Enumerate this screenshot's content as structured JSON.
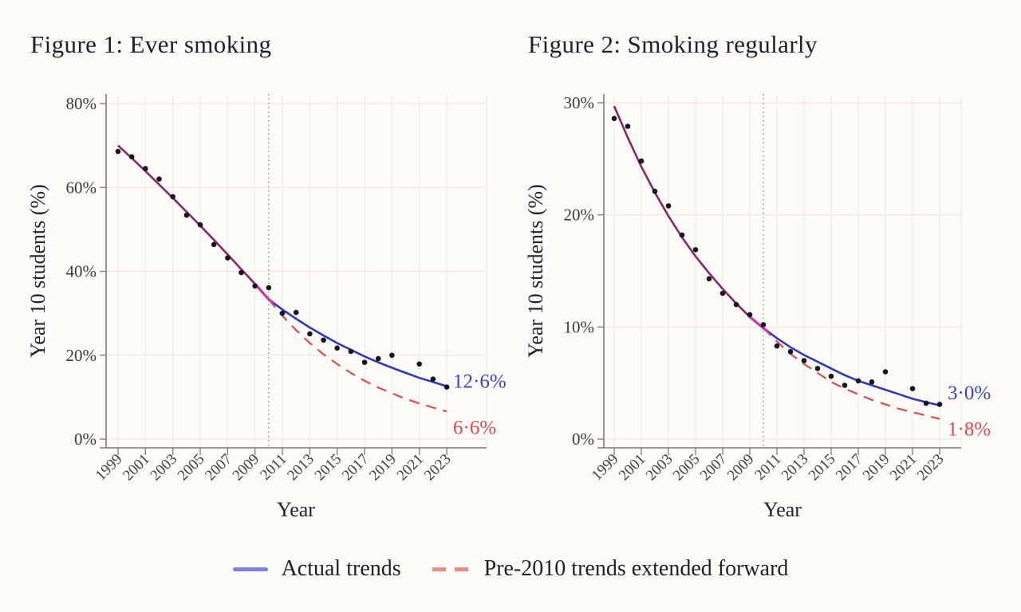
{
  "page": {
    "background_color": "#fcfbf8"
  },
  "legend": {
    "items": [
      {
        "label": "Actual trends",
        "style": "solid",
        "color": "#7d82d8"
      },
      {
        "label": "Pre-2010 trends extended forward",
        "style": "dashed",
        "color": "#ea8b8b"
      }
    ]
  },
  "colors": {
    "actual_line": "#3138c0",
    "extended_line": "#e24a4a",
    "pre2010_overlap_line": "#a22449",
    "junction_highlight": "#d835b5",
    "data_point": "#16161c"
  },
  "chart_data": [
    {
      "type": "scatter",
      "title": "Figure 1: Ever smoking",
      "xlabel": "Year",
      "ylabel": "Year 10 students (%)",
      "ylim": [
        0,
        80
      ],
      "yticks": [
        0,
        20,
        40,
        60,
        80
      ],
      "ytick_labels": [
        "0%",
        "20%",
        "40%",
        "60%",
        "80%"
      ],
      "xticks": [
        1999,
        2001,
        2003,
        2005,
        2007,
        2009,
        2011,
        2013,
        2015,
        2017,
        2019,
        2021,
        2023
      ],
      "reference_line_x": 2010,
      "grid": true,
      "legend_position": "bottom-shared",
      "points": [
        [
          1999,
          68.6
        ],
        [
          2000,
          67.3
        ],
        [
          2001,
          64.5
        ],
        [
          2002,
          62.0
        ],
        [
          2003,
          57.8
        ],
        [
          2004,
          53.4
        ],
        [
          2005,
          51.1
        ],
        [
          2006,
          46.4
        ],
        [
          2007,
          43.2
        ],
        [
          2008,
          39.7
        ],
        [
          2009,
          36.5
        ],
        [
          2010,
          36.1
        ],
        [
          2011,
          30.0
        ],
        [
          2012,
          30.2
        ],
        [
          2013,
          25.1
        ],
        [
          2014,
          23.6
        ],
        [
          2015,
          21.7
        ],
        [
          2016,
          20.9
        ],
        [
          2017,
          18.3
        ],
        [
          2018,
          19.2
        ],
        [
          2019,
          20.0
        ],
        [
          2021,
          17.9
        ],
        [
          2022,
          14.3
        ],
        [
          2023,
          12.4
        ]
      ],
      "fit_pre2010": [
        [
          1999,
          70.0
        ],
        [
          2000,
          67.0
        ],
        [
          2001,
          63.9
        ],
        [
          2002,
          60.7
        ],
        [
          2003,
          57.5
        ],
        [
          2004,
          54.2
        ],
        [
          2005,
          50.9
        ],
        [
          2006,
          47.5
        ],
        [
          2007,
          44.0
        ],
        [
          2008,
          40.5
        ],
        [
          2009,
          37.0
        ],
        [
          2010,
          33.3
        ]
      ],
      "fit_actual_post2010": [
        [
          2010,
          33.3
        ],
        [
          2011,
          30.9
        ],
        [
          2012,
          28.7
        ],
        [
          2013,
          26.6
        ],
        [
          2014,
          24.7
        ],
        [
          2015,
          22.9
        ],
        [
          2016,
          21.3
        ],
        [
          2017,
          19.7
        ],
        [
          2018,
          18.3
        ],
        [
          2019,
          17.0
        ],
        [
          2020,
          15.8
        ],
        [
          2021,
          14.6
        ],
        [
          2022,
          13.6
        ],
        [
          2023,
          12.6
        ]
      ],
      "fit_extended_post2010": [
        [
          2010,
          33.3
        ],
        [
          2011,
          29.4
        ],
        [
          2012,
          26.0
        ],
        [
          2013,
          22.9
        ],
        [
          2014,
          20.2
        ],
        [
          2015,
          17.9
        ],
        [
          2016,
          15.8
        ],
        [
          2017,
          13.9
        ],
        [
          2018,
          12.3
        ],
        [
          2019,
          10.9
        ],
        [
          2020,
          9.6
        ],
        [
          2021,
          8.5
        ],
        [
          2022,
          7.5
        ],
        [
          2023,
          6.6
        ]
      ],
      "actual_end_label": "12·6%",
      "extended_end_label": "6·6%"
    },
    {
      "type": "scatter",
      "title": "Figure 2: Smoking regularly",
      "xlabel": "Year",
      "ylabel": "Year 10 students (%)",
      "ylim": [
        0,
        30
      ],
      "yticks": [
        0,
        10,
        20,
        30
      ],
      "ytick_labels": [
        "0%",
        "10%",
        "20%",
        "30%"
      ],
      "xticks": [
        1999,
        2001,
        2003,
        2005,
        2007,
        2009,
        2011,
        2013,
        2015,
        2017,
        2019,
        2021,
        2023
      ],
      "reference_line_x": 2010,
      "grid": true,
      "legend_position": "bottom-shared",
      "points": [
        [
          1999,
          28.6
        ],
        [
          2000,
          27.9
        ],
        [
          2001,
          24.8
        ],
        [
          2002,
          22.1
        ],
        [
          2003,
          20.8
        ],
        [
          2004,
          18.2
        ],
        [
          2005,
          16.9
        ],
        [
          2006,
          14.3
        ],
        [
          2007,
          13.0
        ],
        [
          2008,
          12.0
        ],
        [
          2009,
          11.1
        ],
        [
          2010,
          10.2
        ],
        [
          2011,
          8.3
        ],
        [
          2012,
          7.8
        ],
        [
          2013,
          7.0
        ],
        [
          2014,
          6.3
        ],
        [
          2015,
          5.6
        ],
        [
          2016,
          4.8
        ],
        [
          2017,
          5.2
        ],
        [
          2018,
          5.1
        ],
        [
          2019,
          6.0
        ],
        [
          2021,
          4.5
        ],
        [
          2022,
          3.2
        ],
        [
          2023,
          3.1
        ]
      ],
      "fit_pre2010": [
        [
          1999,
          29.7
        ],
        [
          2000,
          26.9
        ],
        [
          2001,
          24.3
        ],
        [
          2002,
          22.0
        ],
        [
          2003,
          19.9
        ],
        [
          2004,
          18.0
        ],
        [
          2005,
          16.3
        ],
        [
          2006,
          14.8
        ],
        [
          2007,
          13.4
        ],
        [
          2008,
          12.1
        ],
        [
          2009,
          10.9
        ],
        [
          2010,
          9.9
        ]
      ],
      "fit_actual_post2010": [
        [
          2010,
          9.9
        ],
        [
          2011,
          9.0
        ],
        [
          2012,
          8.2
        ],
        [
          2013,
          7.5
        ],
        [
          2014,
          6.9
        ],
        [
          2015,
          6.3
        ],
        [
          2016,
          5.7
        ],
        [
          2017,
          5.2
        ],
        [
          2018,
          4.8
        ],
        [
          2019,
          4.4
        ],
        [
          2020,
          4.0
        ],
        [
          2021,
          3.6
        ],
        [
          2022,
          3.3
        ],
        [
          2023,
          3.0
        ]
      ],
      "fit_extended_post2010": [
        [
          2010,
          9.9
        ],
        [
          2011,
          8.7
        ],
        [
          2012,
          7.6
        ],
        [
          2013,
          6.7
        ],
        [
          2014,
          5.9
        ],
        [
          2015,
          5.1
        ],
        [
          2016,
          4.5
        ],
        [
          2017,
          4.0
        ],
        [
          2018,
          3.5
        ],
        [
          2019,
          3.1
        ],
        [
          2020,
          2.7
        ],
        [
          2021,
          2.4
        ],
        [
          2022,
          2.1
        ],
        [
          2023,
          1.8
        ]
      ],
      "actual_end_label": "3·0%",
      "extended_end_label": "1·8%"
    }
  ]
}
